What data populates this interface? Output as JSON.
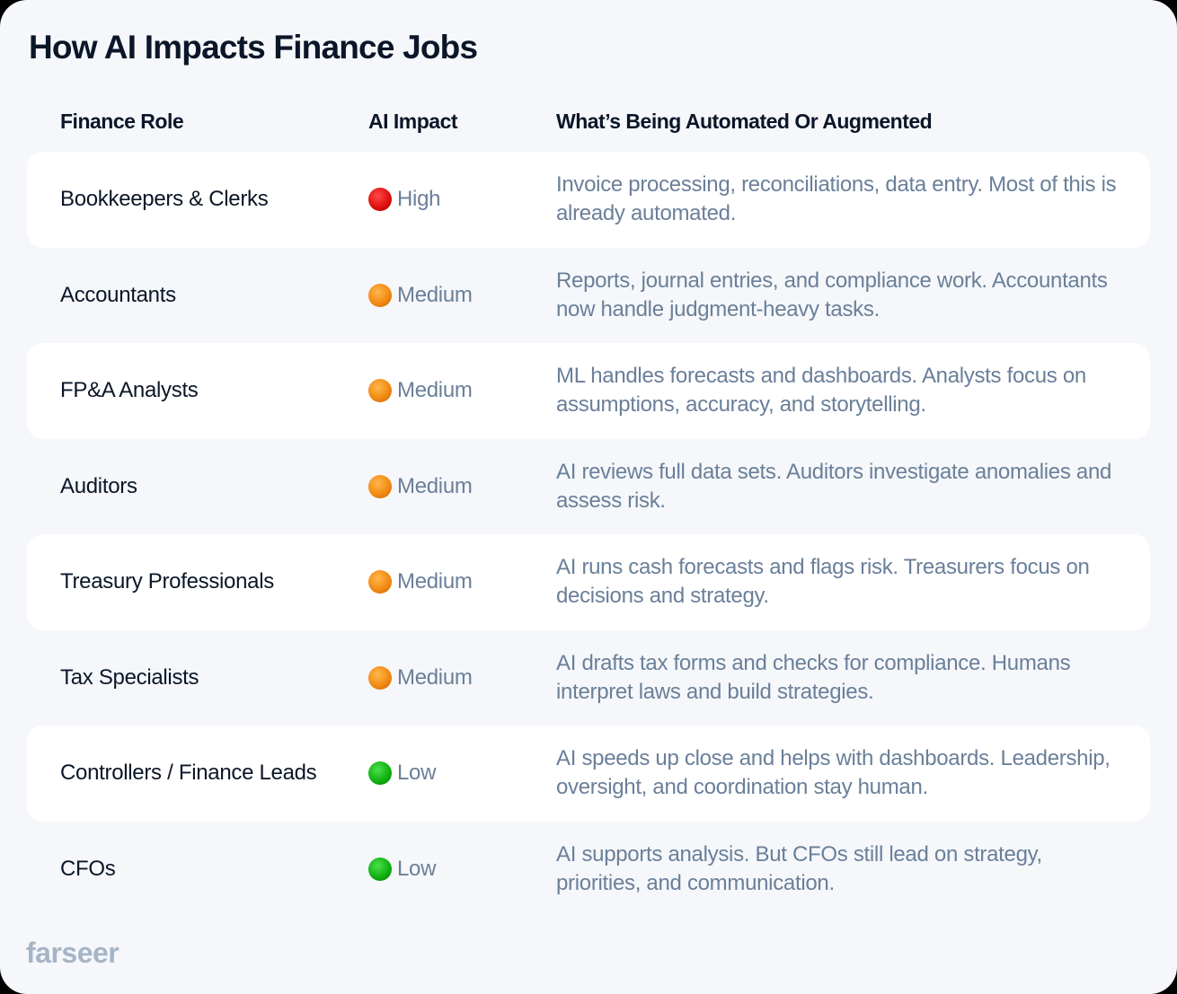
{
  "title": "How AI Impacts Finance Jobs",
  "table": {
    "headers": {
      "role": "Finance Role",
      "impact": "AI Impact",
      "what": "What’s Being Automated Or Augmented"
    },
    "rows": [
      {
        "role": "Bookkeepers & Clerks",
        "impact": "High",
        "impact_icon": "red-circle-icon",
        "what": "Invoice processing, reconciliations, data entry. Most of this is already automated."
      },
      {
        "role": "Accountants",
        "impact": "Medium",
        "impact_icon": "orange-circle-icon",
        "what": "Reports, journal entries, and compliance work. Accountants now handle judgment-heavy tasks."
      },
      {
        "role": "FP&A Analysts",
        "impact": "Medium",
        "impact_icon": "orange-circle-icon",
        "what": "ML handles forecasts and dashboards. Analysts focus on assumptions, accuracy, and storytelling."
      },
      {
        "role": "Auditors",
        "impact": "Medium",
        "impact_icon": "orange-circle-icon",
        "what": "AI reviews full data sets. Auditors investigate anomalies and assess risk."
      },
      {
        "role": "Treasury Professionals",
        "impact": "Medium",
        "impact_icon": "orange-circle-icon",
        "what": "AI runs cash forecasts and flags risk. Treasurers focus on decisions and strategy."
      },
      {
        "role": "Tax Specialists",
        "impact": "Medium",
        "impact_icon": "orange-circle-icon",
        "what": "AI drafts tax forms and checks for compliance. Humans interpret laws and build strategies."
      },
      {
        "role": "Controllers / Finance Leads",
        "impact": "Low",
        "impact_icon": "green-circle-icon",
        "what": "AI speeds up close and helps with dashboards. Leadership, oversight, and coordination stay human."
      },
      {
        "role": "CFOs",
        "impact": "Low",
        "impact_icon": "green-circle-icon",
        "what": "AI supports analysis. But CFOs still lead on strategy, priorities, and communication."
      }
    ]
  },
  "colors": {
    "background": "#f5f7fa",
    "row_highlight": "#ffffff",
    "heading_text": "#0b1628",
    "body_text": "#6a7f99",
    "logo": "#a6b5c6",
    "high": "#e01010",
    "medium": "#f28a12",
    "low": "#10b210"
  },
  "footer": {
    "logo_text": "farseer"
  }
}
